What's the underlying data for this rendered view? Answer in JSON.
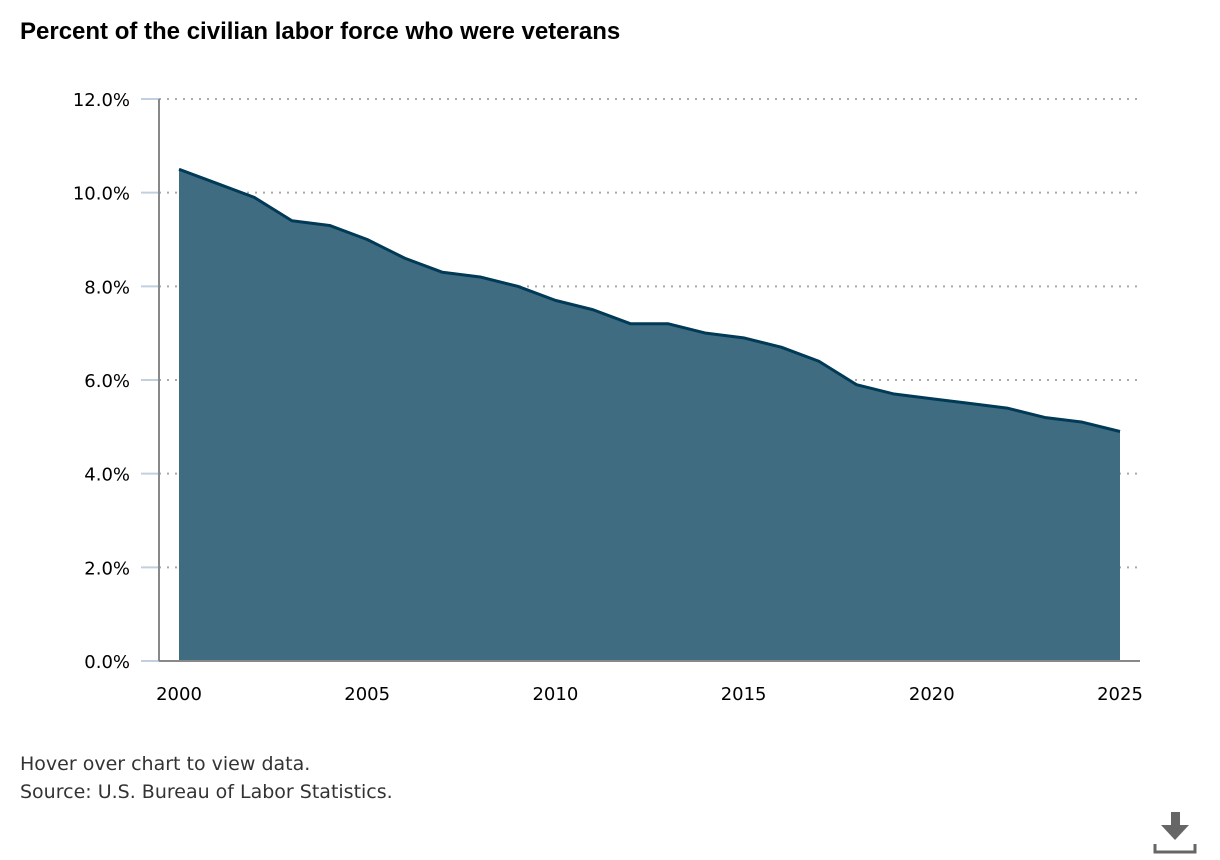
{
  "chart_data": {
    "type": "area",
    "title": "Percent of the civilian labor force who were veterans",
    "x": [
      2000,
      2001,
      2002,
      2003,
      2004,
      2005,
      2006,
      2007,
      2008,
      2009,
      2010,
      2011,
      2012,
      2013,
      2014,
      2015,
      2016,
      2017,
      2018,
      2019,
      2020,
      2021,
      2022,
      2023,
      2024,
      2025
    ],
    "values": [
      10.5,
      10.2,
      9.9,
      9.4,
      9.3,
      9.0,
      8.6,
      8.3,
      8.2,
      8.0,
      7.7,
      7.5,
      7.2,
      7.2,
      7.0,
      6.9,
      6.7,
      6.4,
      5.9,
      5.7,
      5.6,
      5.5,
      5.4,
      5.2,
      5.1,
      4.9
    ],
    "xlim": [
      2000,
      2025
    ],
    "ylim": [
      0,
      12
    ],
    "x_ticks": [
      "2000",
      "2005",
      "2010",
      "2015",
      "2020",
      "2025"
    ],
    "y_ticks": [
      "0.0%",
      "2.0%",
      "4.0%",
      "6.0%",
      "8.0%",
      "10.0%",
      "12.0%"
    ],
    "grid": true,
    "fill_color": "#406c82",
    "line_color": "#003a56"
  },
  "notes": {
    "hover": "Hover over chart to view data.",
    "source": "Source: U.S. Bureau of Labor Statistics."
  },
  "download_icon": "download-icon"
}
